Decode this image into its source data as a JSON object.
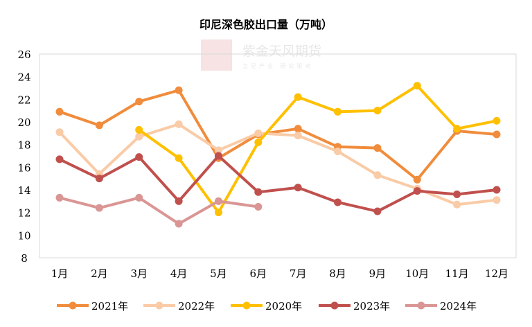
{
  "watermark": {
    "logo": "紫天金凤",
    "name": "紫金天风期货",
    "slogan": "立足产业 研究驱动"
  },
  "chart_data": {
    "type": "line",
    "title": "印尼深色胶出口量（万吨）",
    "categories": [
      "1月",
      "2月",
      "3月",
      "4月",
      "5月",
      "6月",
      "7月",
      "8月",
      "9月",
      "10月",
      "11月",
      "12月"
    ],
    "ylim": [
      8,
      26
    ],
    "yticks": [
      8,
      10,
      12,
      14,
      16,
      18,
      20,
      22,
      24,
      26
    ],
    "grid": false,
    "legend_position": "bottom",
    "series": [
      {
        "name": "2021年",
        "color": "#F08C3C",
        "values": [
          20.9,
          19.7,
          21.8,
          22.8,
          16.8,
          18.9,
          19.4,
          17.8,
          17.7,
          14.9,
          19.2,
          18.9
        ]
      },
      {
        "name": "2022年",
        "color": "#F9CBA6",
        "values": [
          19.1,
          15.4,
          18.7,
          19.8,
          17.5,
          19.0,
          18.8,
          17.4,
          15.3,
          14.1,
          12.7,
          13.1
        ]
      },
      {
        "name": "2020年",
        "color": "#FFC000",
        "values": [
          null,
          null,
          19.3,
          16.8,
          12.0,
          18.2,
          22.2,
          20.9,
          21.0,
          23.2,
          19.4,
          20.1
        ]
      },
      {
        "name": "2023年",
        "color": "#C0504D",
        "values": [
          16.7,
          15.0,
          16.9,
          13.0,
          17.0,
          13.8,
          14.2,
          12.9,
          12.1,
          13.9,
          13.6,
          14.0
        ]
      },
      {
        "name": "2024年",
        "color": "#D99694",
        "values": [
          13.3,
          12.4,
          13.3,
          11.0,
          13.0,
          12.5,
          null,
          null,
          null,
          null,
          null,
          null
        ]
      }
    ]
  }
}
